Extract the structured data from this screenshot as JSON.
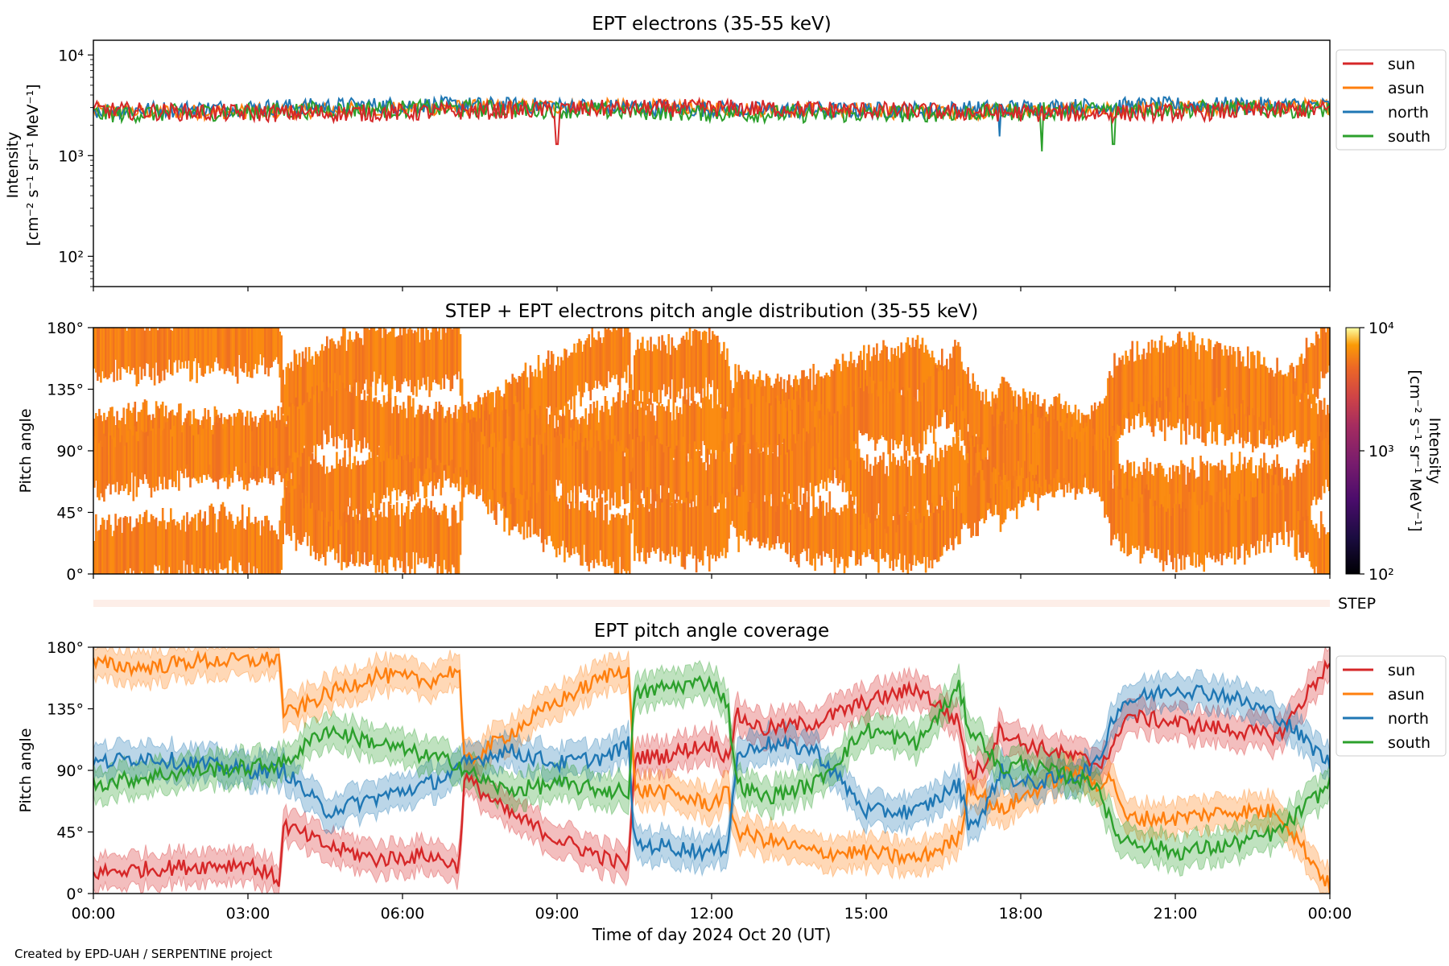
{
  "figure": {
    "credit": "Created by EPD-UAH / SERPENTINE project"
  },
  "colors": {
    "sun": "#d62728",
    "asun": "#ff7f0e",
    "north": "#1f77b4",
    "south": "#2ca02c",
    "pad_fill": "#f97f13",
    "step_bar": "#fdeee8"
  },
  "chart_data": [
    {
      "id": "intensity",
      "type": "line",
      "title": "EPT electrons (35-55 keV)",
      "ylabel_line1": "Intensity",
      "ylabel_line2": "[cm⁻² s⁻¹ sr⁻¹ MeV⁻¹]",
      "yscale": "log",
      "ylim": [
        50,
        14000
      ],
      "yticks": [
        {
          "value": 100,
          "label": "10²"
        },
        {
          "value": 1000,
          "label": "10³"
        },
        {
          "value": 10000,
          "label": "10⁴"
        }
      ],
      "xlim_hours": [
        0,
        24
      ],
      "legend_position": "outside-right",
      "series": [
        {
          "name": "sun",
          "baseline": 2800,
          "spread": 0.16,
          "dips": [
            {
              "x": 9.0,
              "value": 1300
            }
          ]
        },
        {
          "name": "asun",
          "baseline": 2900,
          "spread": 0.14
        },
        {
          "name": "north",
          "baseline": 3000,
          "spread": 0.15,
          "dips": [
            {
              "x": 17.6,
              "value": 1550
            }
          ]
        },
        {
          "name": "south",
          "baseline": 2750,
          "spread": 0.16,
          "dips": [
            {
              "x": 18.4,
              "value": 1100
            },
            {
              "x": 19.8,
              "value": 1300
            }
          ]
        }
      ]
    },
    {
      "id": "pad",
      "type": "heatmap",
      "title": "STEP + EPT electrons pitch angle distribution (35-55 keV)",
      "ylabel": "Pitch angle",
      "ylim": [
        0,
        180
      ],
      "yticks": [
        {
          "value": 0,
          "label": "0°"
        },
        {
          "value": 45,
          "label": "45°"
        },
        {
          "value": 90,
          "label": "90°"
        },
        {
          "value": 135,
          "label": "135°"
        },
        {
          "value": 180,
          "label": "180°"
        }
      ],
      "xlim_hours": [
        0,
        24
      ],
      "colorbar": {
        "label_line1": "Intensity",
        "label_line2": "[cm⁻² s⁻¹ sr⁻¹ MeV⁻¹]",
        "scale": "log",
        "range": [
          100,
          10000
        ],
        "ticks": [
          {
            "value": 100,
            "label": "10²"
          },
          {
            "value": 1000,
            "label": "10³"
          },
          {
            "value": 10000,
            "label": "10⁴"
          }
        ]
      },
      "typical_intensity": 2900
    },
    {
      "id": "step",
      "type": "bar",
      "label": "STEP"
    },
    {
      "id": "coverage",
      "type": "line",
      "title": "EPT pitch angle coverage",
      "ylabel": "Pitch angle",
      "xlabel": "Time of day 2024 Oct 20 (UT)",
      "ylim": [
        0,
        180
      ],
      "yticks": [
        {
          "value": 0,
          "label": "0°"
        },
        {
          "value": 45,
          "label": "45°"
        },
        {
          "value": 90,
          "label": "90°"
        },
        {
          "value": 135,
          "label": "135°"
        },
        {
          "value": 180,
          "label": "180°"
        }
      ],
      "xlim_hours": [
        0,
        24
      ],
      "xticks": [
        {
          "value": 0,
          "label": "00:00"
        },
        {
          "value": 3,
          "label": "03:00"
        },
        {
          "value": 6,
          "label": "06:00"
        },
        {
          "value": 9,
          "label": "09:00"
        },
        {
          "value": 12,
          "label": "12:00"
        },
        {
          "value": 15,
          "label": "15:00"
        },
        {
          "value": 18,
          "label": "18:00"
        },
        {
          "value": 21,
          "label": "21:00"
        },
        {
          "value": 24,
          "label": "00:00"
        }
      ],
      "legend_position": "outside-right",
      "band_halfwidth_deg": 12,
      "series": [
        {
          "name": "sun",
          "x": [
            0,
            1,
            2,
            3,
            3.6,
            3.7,
            4.5,
            5.5,
            6.5,
            7.1,
            7.2,
            8,
            9,
            10,
            10.4,
            10.5,
            11,
            12,
            12.3,
            12.5,
            13,
            14,
            15,
            16,
            16.8,
            17,
            17.3,
            17.6,
            18,
            19,
            19.5,
            19.8,
            20,
            21,
            22,
            23,
            24
          ],
          "y": [
            15,
            18,
            20,
            22,
            10,
            50,
            35,
            25,
            28,
            20,
            85,
            60,
            40,
            25,
            20,
            100,
            100,
            110,
            100,
            130,
            120,
            125,
            140,
            150,
            125,
            85,
            95,
            120,
            110,
            100,
            95,
            105,
            130,
            125,
            120,
            115,
            170
          ]
        },
        {
          "name": "asun",
          "x": [
            0,
            1,
            2,
            3,
            3.6,
            3.7,
            4.5,
            5.5,
            6.5,
            7.1,
            7.2,
            8,
            9,
            10,
            10.4,
            10.5,
            11,
            12,
            12.3,
            12.5,
            13,
            14,
            15,
            16,
            16.8,
            17,
            17.3,
            17.6,
            18,
            19,
            19.5,
            19.8,
            20,
            21,
            22,
            23,
            24
          ],
          "y": [
            168,
            165,
            170,
            170,
            172,
            130,
            145,
            160,
            155,
            165,
            95,
            115,
            140,
            160,
            165,
            75,
            75,
            65,
            75,
            45,
            40,
            30,
            30,
            25,
            40,
            80,
            70,
            60,
            70,
            90,
            80,
            85,
            55,
            55,
            60,
            60,
            5
          ]
        },
        {
          "name": "north",
          "x": [
            0,
            1,
            2,
            3,
            3.6,
            3.7,
            4.5,
            5.5,
            6.5,
            7.1,
            7.2,
            8,
            9,
            10,
            10.4,
            10.5,
            11,
            12,
            12.3,
            12.5,
            13,
            14,
            15,
            16,
            16.8,
            17,
            17.3,
            17.6,
            18,
            19,
            19.5,
            19.8,
            20,
            21,
            22,
            23,
            24
          ],
          "y": [
            95,
            100,
            95,
            90,
            90,
            90,
            60,
            70,
            80,
            90,
            95,
            105,
            95,
            100,
            110,
            35,
            35,
            30,
            35,
            100,
            110,
            105,
            60,
            60,
            80,
            50,
            60,
            90,
            80,
            85,
            95,
            130,
            140,
            150,
            145,
            130,
            95
          ]
        },
        {
          "name": "south",
          "x": [
            0,
            1,
            2,
            3,
            3.6,
            3.7,
            4.5,
            5.5,
            6.5,
            7.1,
            7.2,
            8,
            9,
            10,
            10.4,
            10.5,
            11,
            12,
            12.3,
            12.5,
            13,
            14,
            15,
            16,
            16.8,
            17,
            17.3,
            17.6,
            18,
            19,
            19.5,
            19.8,
            20,
            21,
            22,
            23,
            24
          ],
          "y": [
            80,
            85,
            90,
            92,
            95,
            95,
            120,
            110,
            100,
            95,
            90,
            75,
            80,
            75,
            75,
            145,
            150,
            155,
            140,
            80,
            70,
            80,
            120,
            110,
            150,
            120,
            110,
            90,
            95,
            85,
            80,
            45,
            40,
            30,
            35,
            45,
            80
          ]
        }
      ]
    }
  ]
}
